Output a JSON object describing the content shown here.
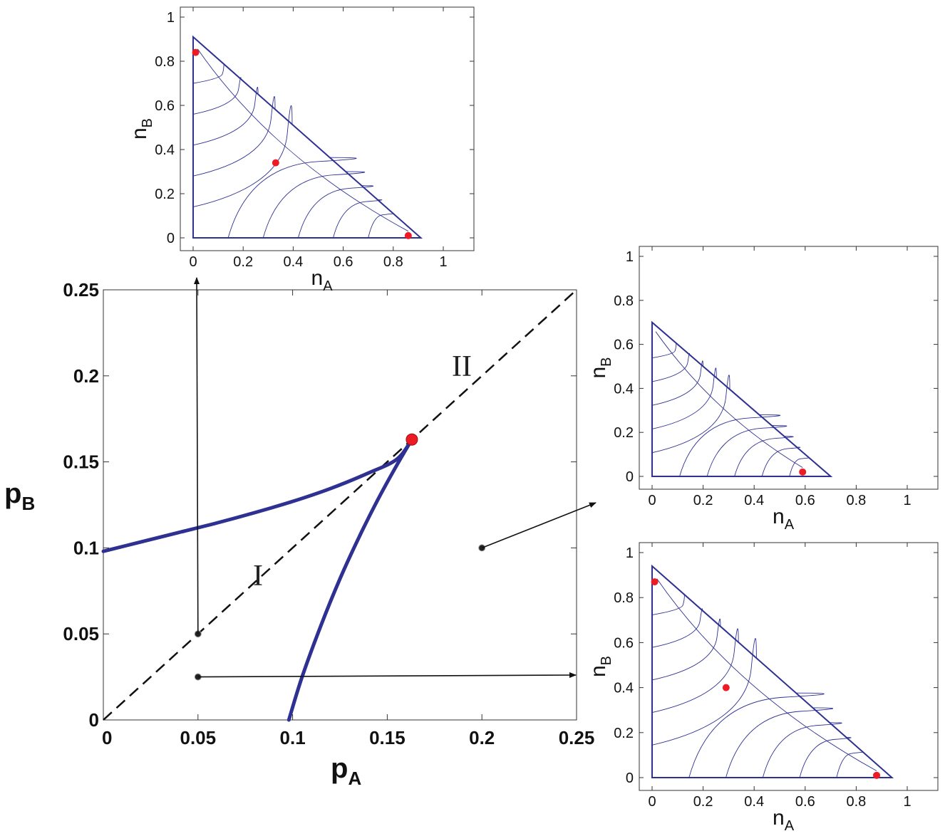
{
  "chart_data": [
    {
      "id": "main",
      "type": "line",
      "xlabel": "p",
      "xlabel_sub": "A",
      "ylabel": "p",
      "ylabel_sub": "B",
      "xlim": [
        0,
        0.25
      ],
      "ylim": [
        0,
        0.25
      ],
      "x_ticks": [
        "0",
        "0.05",
        "0.1",
        "0.15",
        "0.2",
        "0.25"
      ],
      "y_ticks": [
        "0",
        "0.05",
        "0.1",
        "0.15",
        "0.2",
        "0.25"
      ],
      "region_labels": [
        "I",
        "II"
      ],
      "diagonal": {
        "x": [
          0,
          0.25
        ],
        "y": [
          0,
          0.25
        ],
        "style": "dashed"
      },
      "boundary_upper": {
        "x": [
          0,
          0.02,
          0.04,
          0.06,
          0.08,
          0.1,
          0.12,
          0.14,
          0.155,
          0.163
        ],
        "y": [
          0.098,
          0.1035,
          0.109,
          0.1145,
          0.1205,
          0.127,
          0.1345,
          0.1435,
          0.1515,
          0.163
        ]
      },
      "boundary_lower": {
        "x": [
          0.098,
          0.105,
          0.115,
          0.125,
          0.135,
          0.145,
          0.155,
          0.163
        ],
        "y": [
          0,
          0.025,
          0.055,
          0.082,
          0.106,
          0.128,
          0.148,
          0.163
        ]
      },
      "critical_point": {
        "x": 0.163,
        "y": 0.163
      },
      "sample_points": [
        {
          "x": 0.05,
          "y": 0.05,
          "inset": "top"
        },
        {
          "x": 0.2,
          "y": 0.1,
          "inset": "middle-right"
        },
        {
          "x": 0.05,
          "y": 0.025,
          "inset": "bottom-right"
        }
      ],
      "colors": {
        "boundary": "#2e3192",
        "critical": "#ed1c24",
        "axis": "#222222"
      }
    },
    {
      "id": "inset-top",
      "type": "line",
      "xlabel": "n",
      "xlabel_sub": "A",
      "ylabel": "n",
      "ylabel_sub": "B",
      "xlim": [
        0,
        1
      ],
      "ylim": [
        0,
        1
      ],
      "x_ticks": [
        "0",
        "0.2",
        "0.4",
        "0.6",
        "0.8",
        "1"
      ],
      "y_ticks": [
        "0",
        "0.2",
        "0.4",
        "0.6",
        "0.8",
        "1"
      ],
      "simplex_max": 0.91,
      "fixed_points": [
        {
          "x": 0.01,
          "y": 0.84
        },
        {
          "x": 0.33,
          "y": 0.34
        },
        {
          "x": 0.86,
          "y": 0.01
        }
      ],
      "colors": {
        "trajectories": "#2e3192",
        "fixed_points": "#ed1c24"
      }
    },
    {
      "id": "inset-middle-right",
      "type": "line",
      "xlabel": "n",
      "xlabel_sub": "A",
      "ylabel": "n",
      "ylabel_sub": "B",
      "xlim": [
        0,
        1
      ],
      "ylim": [
        0,
        1
      ],
      "x_ticks": [
        "0",
        "0.2",
        "0.4",
        "0.6",
        "0.8",
        "1"
      ],
      "y_ticks": [
        "0",
        "0.2",
        "0.4",
        "0.6",
        "0.8",
        "1"
      ],
      "simplex_max": 0.7,
      "fixed_points": [
        {
          "x": 0.59,
          "y": 0.02
        }
      ],
      "colors": {
        "trajectories": "#2e3192",
        "fixed_points": "#ed1c24"
      }
    },
    {
      "id": "inset-bottom-right",
      "type": "line",
      "xlabel": "n",
      "xlabel_sub": "A",
      "ylabel": "n",
      "ylabel_sub": "B",
      "xlim": [
        0,
        1
      ],
      "ylim": [
        0,
        1
      ],
      "x_ticks": [
        "0",
        "0.2",
        "0.4",
        "0.6",
        "0.8",
        "1"
      ],
      "y_ticks": [
        "0",
        "0.2",
        "0.4",
        "0.6",
        "0.8",
        "1"
      ],
      "simplex_max": 0.94,
      "fixed_points": [
        {
          "x": 0.01,
          "y": 0.87
        },
        {
          "x": 0.29,
          "y": 0.4
        },
        {
          "x": 0.88,
          "y": 0.01
        }
      ],
      "colors": {
        "trajectories": "#2e3192",
        "fixed_points": "#ed1c24"
      }
    }
  ]
}
